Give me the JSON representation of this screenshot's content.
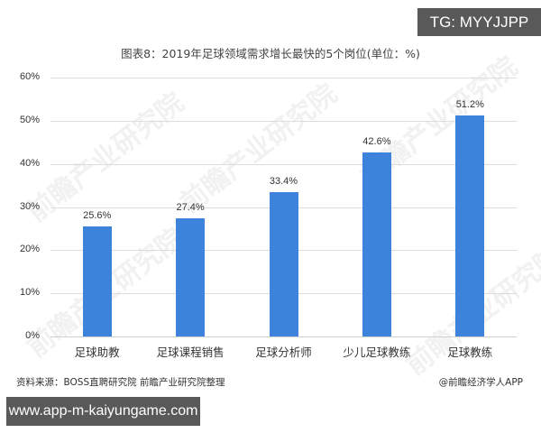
{
  "overlay": {
    "tg_badge": "TG: MYYJJPP",
    "url_badge": "www.app-m-kaiyungame.com"
  },
  "watermark": "前瞻产业研究院",
  "footer": {
    "source": "资料来源：BOSS直聘研究院 前瞻产业研究院整理",
    "credit": "@前瞻经济学人APP"
  },
  "colors": {
    "bar": "#3d82db",
    "gridline": "#dcdcdc",
    "badge_bg": "#595959"
  },
  "chart_data": {
    "type": "bar",
    "title": "图表8：2019年足球领域需求增长最快的5个岗位(单位：%)",
    "xlabel": "",
    "ylabel": "",
    "categories": [
      "足球助教",
      "足球课程销售",
      "足球分析师",
      "少儿足球教练",
      "足球教练"
    ],
    "values": [
      25.6,
      27.4,
      33.4,
      42.6,
      51.2
    ],
    "data_labels": [
      "25.6%",
      "27.4%",
      "33.4%",
      "42.6%",
      "51.2%"
    ],
    "ylim": [
      0,
      60
    ],
    "yticks": [
      "0%",
      "10%",
      "20%",
      "30%",
      "40%",
      "50%",
      "60%"
    ],
    "grid": true,
    "legend": null
  }
}
